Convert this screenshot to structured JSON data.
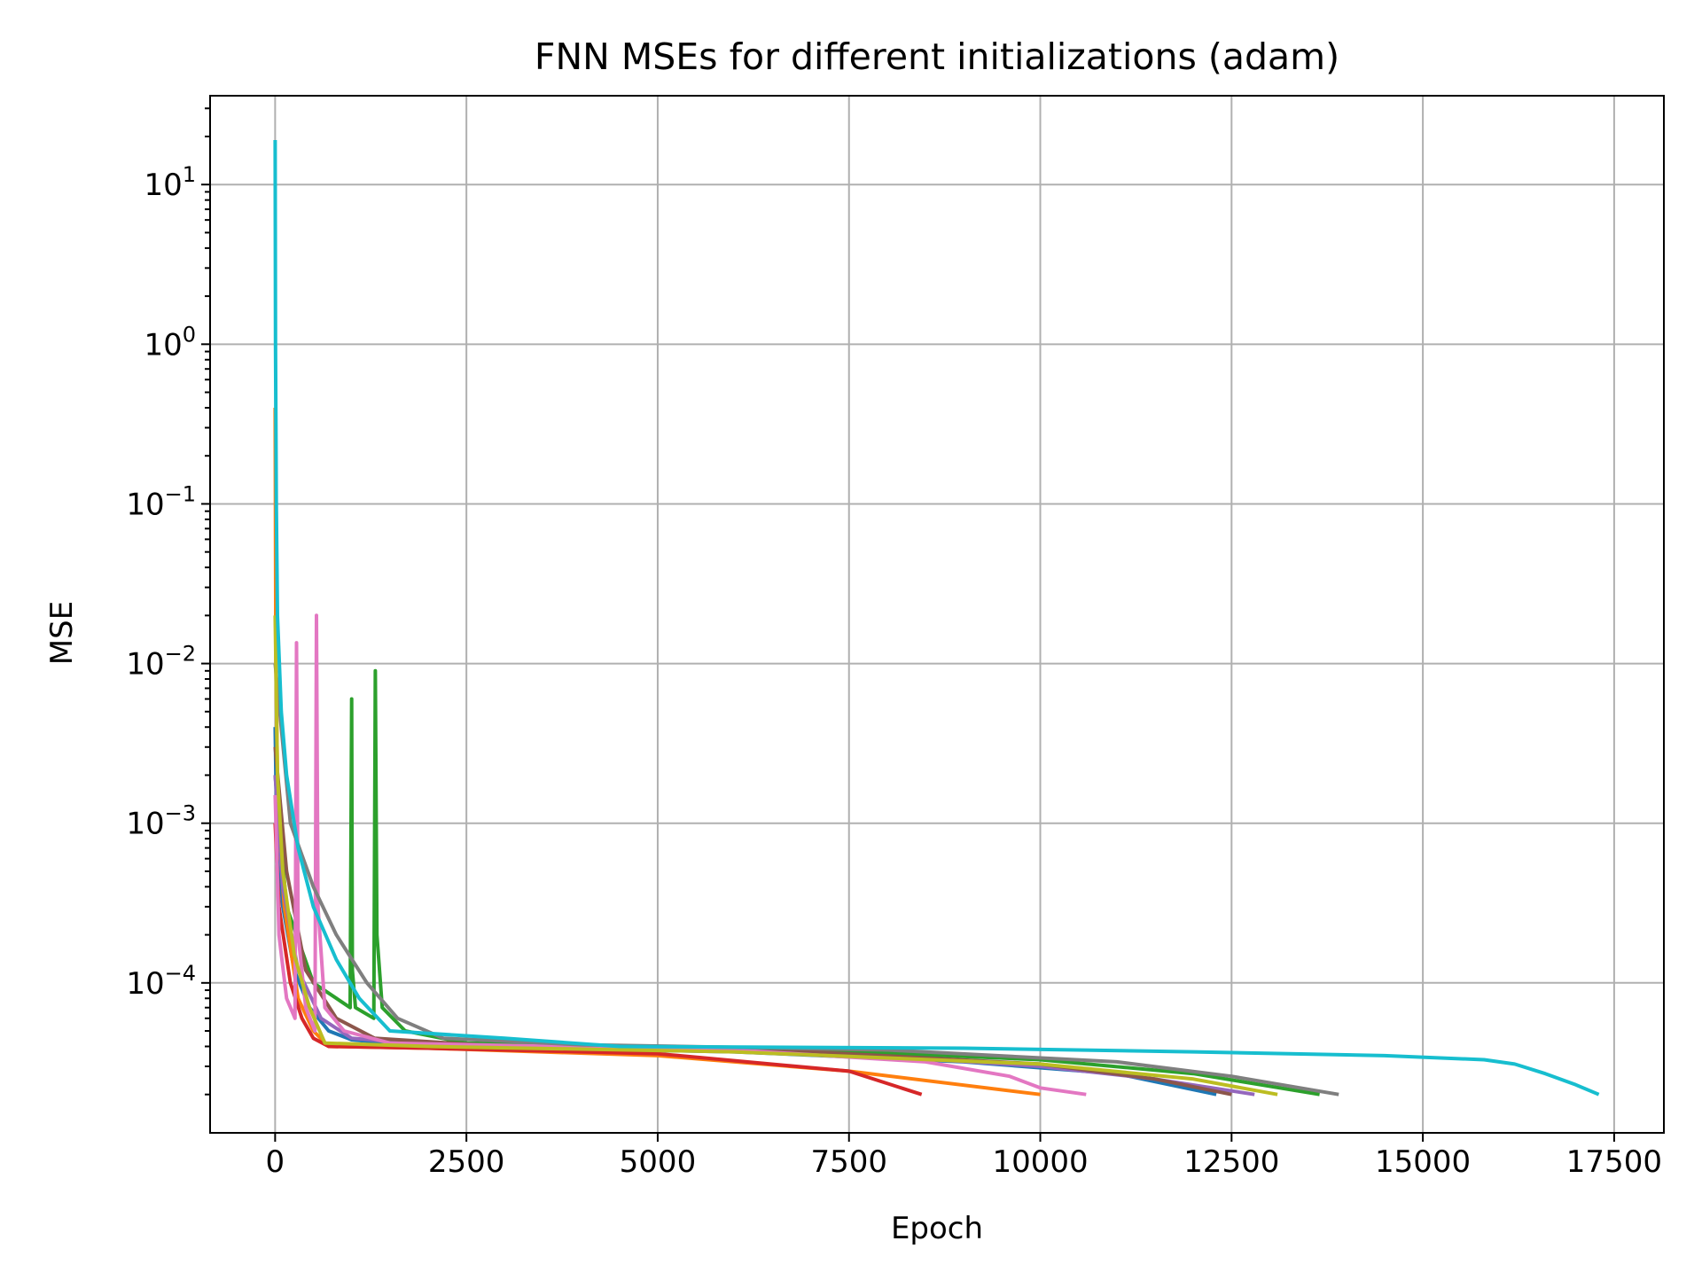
{
  "chart_data": {
    "type": "line",
    "title": "FNN MSEs for different initializations (adam)",
    "xlabel": "Epoch",
    "ylabel": "MSE",
    "xlim": [
      -850,
      18150
    ],
    "ylim": [
      1.15e-05,
      36
    ],
    "yscale": "log",
    "grid": true,
    "x_ticks": [
      0,
      2500,
      5000,
      7500,
      10000,
      12500,
      15000,
      17500
    ],
    "x_tick_labels": [
      "0",
      "2500",
      "5000",
      "7500",
      "10000",
      "12500",
      "15000",
      "17500"
    ],
    "y_ticks": [
      {
        "value": 10,
        "base": "10",
        "exp": "1"
      },
      {
        "value": 1,
        "base": "10",
        "exp": "0"
      },
      {
        "value": 0.1,
        "base": "10",
        "exp": "−1"
      },
      {
        "value": 0.01,
        "base": "10",
        "exp": "−2"
      },
      {
        "value": 0.001,
        "base": "10",
        "exp": "−3"
      },
      {
        "value": 0.0001,
        "base": "10",
        "exp": "−4"
      }
    ],
    "series": [
      {
        "color": "#1f77b4",
        "points": [
          [
            0,
            0.004
          ],
          [
            20,
            0.0009
          ],
          [
            100,
            0.0003
          ],
          [
            250,
            0.00012
          ],
          [
            450,
            7e-05
          ],
          [
            700,
            5e-05
          ],
          [
            1000,
            4.4e-05
          ],
          [
            2000,
            4e-05
          ],
          [
            6000,
            3.7e-05
          ],
          [
            9000,
            3.2e-05
          ],
          [
            11000,
            2.7e-05
          ],
          [
            12300,
            2e-05
          ]
        ]
      },
      {
        "color": "#ff7f0e",
        "points": [
          [
            0,
            0.4
          ],
          [
            10,
            0.01
          ],
          [
            40,
            0.001
          ],
          [
            120,
            0.0003
          ],
          [
            300,
            8e-05
          ],
          [
            500,
            5e-05
          ],
          [
            700,
            4e-05
          ],
          [
            2000,
            3.9e-05
          ],
          [
            5000,
            3.5e-05
          ],
          [
            7500,
            2.8e-05
          ],
          [
            10000,
            2e-05
          ]
        ]
      },
      {
        "color": "#2ca02c",
        "points": [
          [
            0,
            0.002
          ],
          [
            150,
            0.0003
          ],
          [
            500,
            0.0001
          ],
          [
            980,
            7e-05
          ],
          [
            1000,
            0.006
          ],
          [
            1010,
            0.00012
          ],
          [
            1050,
            7e-05
          ],
          [
            1290,
            6e-05
          ],
          [
            1310,
            0.009
          ],
          [
            1330,
            0.0002
          ],
          [
            1400,
            7e-05
          ],
          [
            1700,
            5e-05
          ],
          [
            2500,
            4.2e-05
          ],
          [
            7000,
            3.8e-05
          ],
          [
            10000,
            3.3e-05
          ],
          [
            12000,
            2.7e-05
          ],
          [
            13650,
            2e-05
          ]
        ]
      },
      {
        "color": "#d62728",
        "points": [
          [
            0,
            0.001
          ],
          [
            50,
            0.0003
          ],
          [
            200,
            0.0001
          ],
          [
            350,
            6e-05
          ],
          [
            500,
            4.5e-05
          ],
          [
            700,
            4e-05
          ],
          [
            2000,
            3.9e-05
          ],
          [
            5000,
            3.6e-05
          ],
          [
            7500,
            2.8e-05
          ],
          [
            8450,
            2e-05
          ]
        ]
      },
      {
        "color": "#9467bd",
        "points": [
          [
            0,
            0.002
          ],
          [
            100,
            0.0004
          ],
          [
            300,
            0.00012
          ],
          [
            600,
            6e-05
          ],
          [
            1000,
            4.5e-05
          ],
          [
            2000,
            4.1e-05
          ],
          [
            7000,
            3.7e-05
          ],
          [
            10000,
            3e-05
          ],
          [
            11500,
            2.5e-05
          ],
          [
            12800,
            2e-05
          ]
        ]
      },
      {
        "color": "#8c564b",
        "points": [
          [
            0,
            0.003
          ],
          [
            150,
            0.0005
          ],
          [
            400,
            0.00012
          ],
          [
            800,
            6e-05
          ],
          [
            1300,
            4.5e-05
          ],
          [
            3000,
            4e-05
          ],
          [
            7000,
            3.7e-05
          ],
          [
            10000,
            3.1e-05
          ],
          [
            11500,
            2.5e-05
          ],
          [
            12500,
            2e-05
          ]
        ]
      },
      {
        "color": "#e377c2",
        "points": [
          [
            0,
            0.0015
          ],
          [
            50,
            0.0002
          ],
          [
            150,
            8e-05
          ],
          [
            260,
            6e-05
          ],
          [
            280,
            0.0135
          ],
          [
            300,
            0.0002
          ],
          [
            400,
            7e-05
          ],
          [
            520,
            5e-05
          ],
          [
            540,
            0.02
          ],
          [
            560,
            0.0003
          ],
          [
            650,
            7e-05
          ],
          [
            900,
            5e-05
          ],
          [
            1500,
            4.2e-05
          ],
          [
            6000,
            3.8e-05
          ],
          [
            8500,
            3.2e-05
          ],
          [
            9600,
            2.6e-05
          ],
          [
            10000,
            2.2e-05
          ],
          [
            10600,
            2e-05
          ]
        ]
      },
      {
        "color": "#7f7f7f",
        "points": [
          [
            0,
            0.01
          ],
          [
            200,
            0.001
          ],
          [
            500,
            0.0004
          ],
          [
            800,
            0.0002
          ],
          [
            1200,
            0.0001
          ],
          [
            1600,
            6e-05
          ],
          [
            2200,
            4.5e-05
          ],
          [
            4000,
            4.1e-05
          ],
          [
            8000,
            3.8e-05
          ],
          [
            11000,
            3.2e-05
          ],
          [
            12500,
            2.6e-05
          ],
          [
            13900,
            2e-05
          ]
        ]
      },
      {
        "color": "#bcbd22",
        "points": [
          [
            0,
            0.02
          ],
          [
            30,
            0.002
          ],
          [
            100,
            0.0005
          ],
          [
            250,
            0.00015
          ],
          [
            450,
            7e-05
          ],
          [
            650,
            4.2e-05
          ],
          [
            2000,
            4e-05
          ],
          [
            6000,
            3.7e-05
          ],
          [
            10000,
            3.1e-05
          ],
          [
            12000,
            2.5e-05
          ],
          [
            13100,
            2e-05
          ]
        ]
      },
      {
        "color": "#17becf",
        "points": [
          [
            0,
            19
          ],
          [
            5,
            1
          ],
          [
            15,
            0.1
          ],
          [
            30,
            0.02
          ],
          [
            80,
            0.005
          ],
          [
            150,
            0.002
          ],
          [
            300,
            0.0007
          ],
          [
            500,
            0.0003
          ],
          [
            800,
            0.00014
          ],
          [
            1100,
            8e-05
          ],
          [
            1500,
            5e-05
          ],
          [
            3000,
            4.5e-05
          ],
          [
            4500,
            4e-05
          ],
          [
            9000,
            3.9e-05
          ],
          [
            12000,
            3.7e-05
          ],
          [
            14500,
            3.5e-05
          ],
          [
            15800,
            3.3e-05
          ],
          [
            16200,
            3.1e-05
          ],
          [
            16600,
            2.7e-05
          ],
          [
            17000,
            2.3e-05
          ],
          [
            17300,
            2e-05
          ]
        ]
      }
    ]
  }
}
